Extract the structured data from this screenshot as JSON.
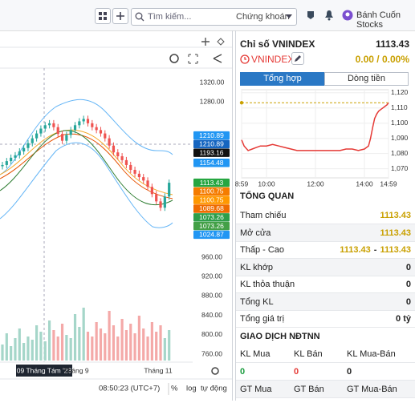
{
  "topbar": {
    "search_placeholder": "Tìm kiếm...",
    "market": "Chứng khoán",
    "user": "Bánh Cuốn Stocks"
  },
  "main_chart": {
    "type": "candlestick",
    "price_ticks": [
      {
        "value": 1320,
        "label": "1320.00"
      },
      {
        "value": 1280,
        "label": "1280.00"
      },
      {
        "value": 960,
        "label": "960.00"
      },
      {
        "value": 920,
        "label": "920.00"
      },
      {
        "value": 880,
        "label": "880.00"
      },
      {
        "value": 840,
        "label": "840.00"
      },
      {
        "value": 800,
        "label": "800.00"
      },
      {
        "value": 760,
        "label": "760.00"
      }
    ],
    "badges": [
      {
        "value": 1210.89,
        "color": "#2196f3"
      },
      {
        "value": 1210.89,
        "color": "#1565c0"
      },
      {
        "value": 1193.16,
        "color": "#111111"
      },
      {
        "value": 1154.48,
        "color": "#2196f3"
      },
      {
        "value": 1113.43,
        "color": "#26a641"
      },
      {
        "value": 1100.75,
        "color": "#f57c00"
      },
      {
        "value": 1100.75,
        "color": "#ff9800"
      },
      {
        "value": 1089.68,
        "color": "#ef6c00"
      },
      {
        "value": 1073.26,
        "color": "#2e9e4a"
      },
      {
        "value": 1073.26,
        "color": "#43a047"
      },
      {
        "value": 1024.87,
        "color": "#2196f3"
      }
    ],
    "closes": [
      1150,
      1158,
      1165,
      1170,
      1178,
      1185,
      1195,
      1205,
      1215,
      1225,
      1232,
      1236,
      1228,
      1214,
      1200,
      1212,
      1222,
      1232,
      1240,
      1245,
      1236,
      1228,
      1222,
      1215,
      1205,
      1190,
      1176,
      1168,
      1160,
      1150,
      1140,
      1132,
      1125,
      1118,
      1105,
      1090,
      1075,
      1062,
      1085,
      1113.43
    ],
    "volumes": [
      20,
      34,
      18,
      28,
      40,
      22,
      30,
      26,
      44,
      36,
      24,
      50,
      38,
      30,
      46,
      32,
      28,
      58,
      42,
      66,
      36,
      30,
      48,
      40,
      34,
      62,
      44,
      30,
      52,
      38,
      46,
      34,
      56,
      40,
      30,
      48,
      36,
      44,
      28,
      38
    ],
    "date_labels": [
      "09 Tháng Tám '23",
      "Tháng 9",
      "Tháng 11"
    ],
    "time": "08:50:23 (UTC+7)",
    "scale_buttons": [
      "%",
      "log",
      "tự động"
    ]
  },
  "panel": {
    "title": "Chỉ số VNINDEX",
    "price": 1113.43,
    "symbol": "VNINDEX",
    "change": "0.00 / 0.00%",
    "tabs": [
      "Tổng hợp",
      "Dòng tiền"
    ]
  },
  "chart_data": {
    "type": "line",
    "x": [
      539,
      545,
      555,
      565,
      575,
      585,
      600,
      615,
      630,
      645,
      660,
      675,
      690,
      780,
      795,
      810,
      825,
      840,
      850,
      855,
      860,
      865,
      870,
      875,
      880,
      885,
      890,
      895,
      899
    ],
    "series": [
      {
        "color": "#e53935",
        "values": [
          1089,
          1085,
          1082,
          1083,
          1084,
          1085,
          1085,
          1086,
          1085,
          1084,
          1083,
          1082,
          1082,
          1082,
          1083,
          1083,
          1082,
          1083,
          1085,
          1090,
          1097,
          1103,
          1106,
          1108,
          1109,
          1110,
          1111,
          1112,
          1113.43
        ]
      }
    ],
    "reference": 1113.43,
    "xlim": [
      539,
      899
    ],
    "xticks": [
      {
        "value": 539,
        "label": "8:59"
      },
      {
        "value": 600,
        "label": "10:00"
      },
      {
        "value": 720,
        "label": "12:00"
      },
      {
        "value": 840,
        "label": "14:00"
      },
      {
        "value": 899,
        "label": "14:59"
      }
    ],
    "ylim": [
      1064,
      1122
    ],
    "yticks": [
      {
        "value": 1070,
        "label": "1,070"
      },
      {
        "value": 1080,
        "label": "1,080"
      },
      {
        "value": 1090,
        "label": "1,090"
      },
      {
        "value": 1100,
        "label": "1,100"
      },
      {
        "value": 1110,
        "label": "1,110"
      },
      {
        "value": 1120,
        "label": "1,120"
      }
    ],
    "grid": true
  },
  "overview": {
    "title": "TỔNG QUAN",
    "rows": [
      {
        "label": "Tham chiếu",
        "value": 1113.43
      },
      {
        "label": "Mở cửa",
        "value": 1113.43
      },
      {
        "label": "Thấp - Cao",
        "low": 1113.43,
        "sep": "-",
        "high": 1113.43
      },
      {
        "label": "KL khớp",
        "value": 0
      },
      {
        "label": "KL thỏa thuận",
        "value": 0
      },
      {
        "label": "Tổng KL",
        "value": 0
      },
      {
        "label": "Tổng giá trị",
        "value": "0 tỷ"
      }
    ]
  },
  "foreign": {
    "title": "GIAO DỊCH NĐTNN",
    "headers": [
      "KL Mua",
      "KL Bán",
      "KL Mua-Bán"
    ],
    "values": [
      0,
      0,
      0
    ],
    "headers2": [
      "GT Mua",
      "GT Bán",
      "GT Mua-Bán"
    ]
  }
}
